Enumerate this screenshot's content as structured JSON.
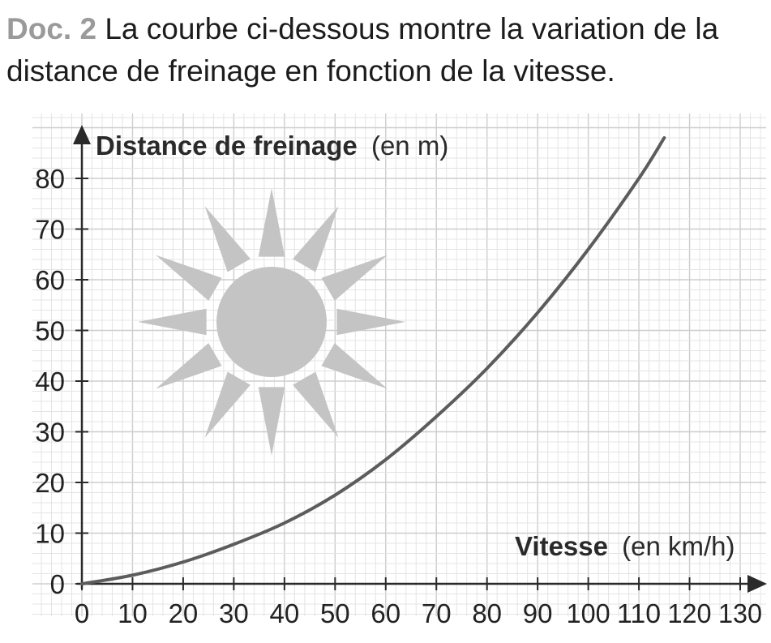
{
  "heading": {
    "label": "Doc. 2",
    "text": "La courbe ci-dessous montre la variation de la distance de freinage en fonction de la vitesse."
  },
  "colors": {
    "curve": "#5c5c5c",
    "grid_minor": "#e4e4e4",
    "grid_major": "#cdcdcd",
    "sun": "#c4c4c4",
    "axis": "#2a2a2a"
  },
  "icons": [
    "sun-icon",
    "y-axis-arrow-icon",
    "x-axis-arrow-icon"
  ],
  "chart_data": {
    "type": "line",
    "ylabel_bold": "Distance de freinage",
    "ylabel_unit": "(en m)",
    "xlabel_bold": "Vitesse",
    "xlabel_unit": "(en km/h)",
    "xlim": [
      0,
      130
    ],
    "ylim": [
      0,
      80
    ],
    "x_ticks": [
      0,
      10,
      20,
      30,
      40,
      50,
      60,
      70,
      80,
      90,
      100,
      110,
      120,
      130
    ],
    "y_ticks": [
      0,
      10,
      20,
      30,
      40,
      50,
      60,
      70,
      80
    ],
    "grid": true,
    "series": [
      {
        "x": [
          0,
          10,
          20,
          30,
          40,
          50,
          60,
          70,
          80,
          90,
          100,
          110,
          115
        ],
        "y": [
          0,
          1.7,
          4.3,
          7.8,
          12,
          17.5,
          24.5,
          33,
          42.5,
          53.5,
          66,
          80,
          88
        ]
      }
    ]
  }
}
